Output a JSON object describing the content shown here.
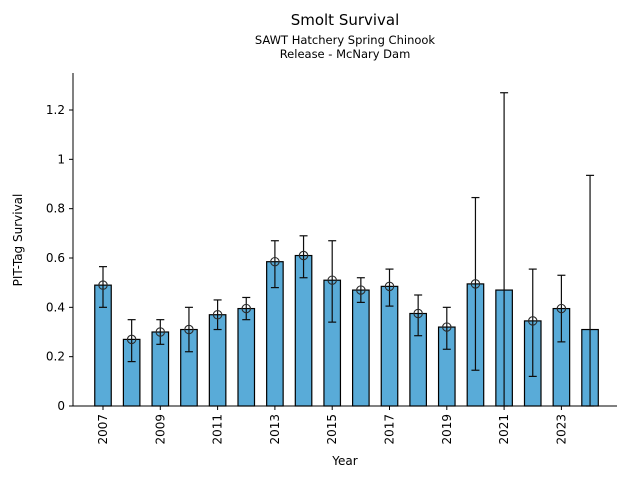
{
  "chart_data": {
    "type": "bar",
    "title": "Smolt Survival",
    "subtitle_line1": "SAWT Hatchery Spring Chinook",
    "subtitle_line2": "Release - McNary Dam",
    "xlabel": "Year",
    "ylabel": "PIT-Tag Survival",
    "ylim": [
      0,
      1.35
    ],
    "grid": false,
    "legend": "none",
    "categories": [
      2007,
      2008,
      2009,
      2010,
      2011,
      2012,
      2013,
      2014,
      2015,
      2016,
      2017,
      2018,
      2019,
      2020,
      2021,
      2022,
      2023,
      2024
    ],
    "values": [
      0.49,
      0.27,
      0.3,
      0.31,
      0.37,
      0.395,
      0.585,
      0.61,
      0.51,
      0.47,
      0.485,
      0.375,
      0.32,
      0.495,
      0.47,
      0.345,
      0.395,
      0.31
    ],
    "ci_low": [
      0.4,
      0.18,
      0.25,
      0.22,
      0.31,
      0.35,
      0.48,
      0.52,
      0.34,
      0.42,
      0.405,
      0.285,
      0.23,
      0.145,
      0.0,
      0.12,
      0.26,
      0.0
    ],
    "ci_high": [
      0.565,
      0.35,
      0.35,
      0.4,
      0.43,
      0.44,
      0.67,
      0.69,
      0.67,
      0.52,
      0.555,
      0.45,
      0.4,
      0.845,
      1.27,
      0.555,
      0.53,
      0.935
    ],
    "has_marker": [
      true,
      true,
      true,
      true,
      true,
      true,
      true,
      true,
      true,
      true,
      true,
      true,
      true,
      true,
      false,
      true,
      true,
      false
    ],
    "yticks": {
      "values": [
        0,
        0.2,
        0.4,
        0.6,
        0.8,
        1.0,
        1.2
      ],
      "labels": [
        "0",
        "0.2",
        "0.4",
        "0.6",
        "0.8",
        "1",
        "1.2"
      ]
    },
    "xticks": {
      "values": [
        2007,
        2009,
        2011,
        2013,
        2015,
        2017,
        2019,
        2021,
        2023
      ],
      "labels": [
        "2007",
        "2009",
        "2011",
        "2013",
        "2015",
        "2017",
        "2019",
        "2021",
        "2023"
      ]
    },
    "colors": {
      "bar_fill": "#59ABD8",
      "bar_edge": "#000000",
      "error": "#0d0d0d",
      "marker_edge": "#2b2b2b",
      "axis": "#000000",
      "text": "#000000"
    }
  }
}
